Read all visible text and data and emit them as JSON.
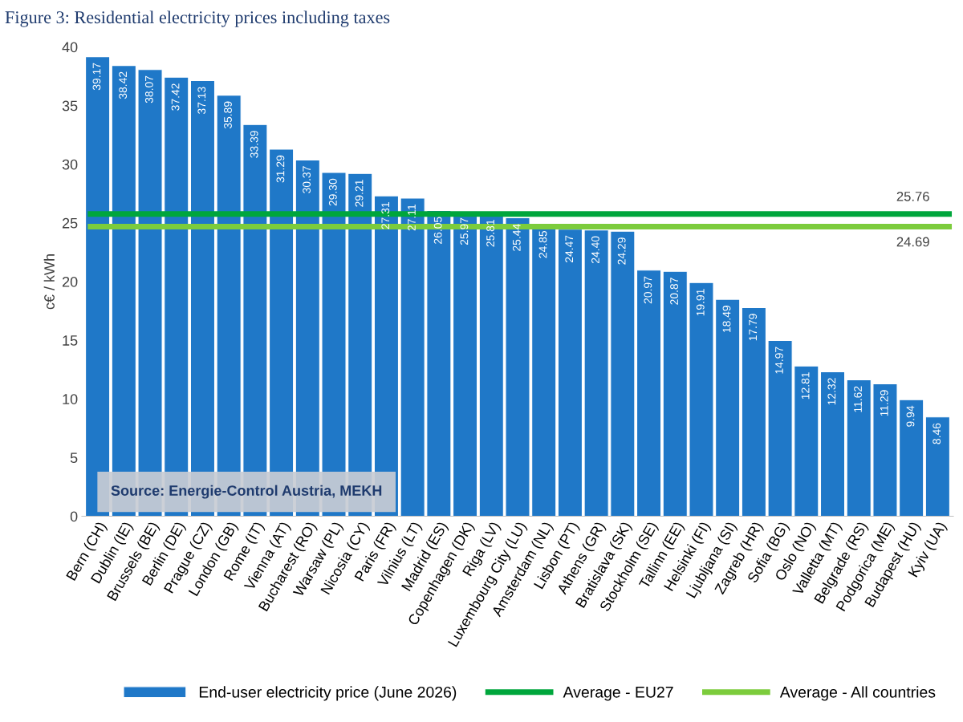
{
  "chart_data": {
    "type": "bar",
    "title": "Figure 3: Residential electricity prices including taxes",
    "ylabel": "c€ / kWh",
    "categories": [
      "Bern (CH)",
      "Dublin (IE)",
      "Brussels (BE)",
      "Berlin (DE)",
      "Prague (CZ)",
      "London (GB)",
      "Rome (IT)",
      "Vienna (AT)",
      "Bucharest (RO)",
      "Warsaw (PL)",
      "Nicosia (CY)",
      "Paris (FR)",
      "Vilnius (LT)",
      "Madrid (ES)",
      "Copenhagen (DK)",
      "Riga (LV)",
      "Luxembourg City (LU)",
      "Amsterdam (NL)",
      "Lisbon (PT)",
      "Athens (GR)",
      "Bratislava (SK)",
      "Stockholm (SE)",
      "Tallinn (EE)",
      "Helsinki (FI)",
      "Ljubljana (SI)",
      "Zagreb (HR)",
      "Sofia (BG)",
      "Oslo (NO)",
      "Valletta (MT)",
      "Belgrade (RS)",
      "Podgorica (ME)",
      "Budapest (HU)",
      "Kyiv (UA)"
    ],
    "series": [
      {
        "name": "End-user electricity price (June 2026)",
        "color": "#1f78c8",
        "values": [
          39.17,
          38.42,
          38.07,
          37.42,
          37.13,
          35.89,
          33.39,
          31.29,
          30.37,
          29.3,
          29.21,
          27.31,
          27.11,
          26.05,
          25.97,
          25.81,
          25.44,
          24.85,
          24.47,
          24.4,
          24.29,
          20.97,
          20.87,
          19.91,
          18.49,
          17.79,
          14.97,
          12.81,
          12.32,
          11.62,
          11.29,
          9.94,
          8.46
        ],
        "value_labels": [
          "39.17",
          "38.42",
          "38.07",
          "37.42",
          "37.13",
          "35.89",
          "33.39",
          "31.29",
          "30.37",
          "29.30",
          "29.21",
          "27.31",
          "27.11",
          "26.05",
          "25.97",
          "25.81",
          "25.44",
          "24.85",
          "24.47",
          "24.40",
          "24.29",
          "20.97",
          "20.87",
          "19.91",
          "18.49",
          "17.79",
          "14.97",
          "12.81",
          "12.32",
          "11.62",
          "11.29",
          "9.94",
          "8.46"
        ]
      }
    ],
    "ref_lines": [
      {
        "axis": "y",
        "value": 25.76,
        "label": "Average - EU27",
        "color": "#00a63c"
      },
      {
        "axis": "y",
        "value": 24.69,
        "label": "Average - All countries",
        "color": "#7ccc3c"
      }
    ],
    "ylim": [
      0,
      40
    ],
    "yticks": [
      0,
      5,
      10,
      15,
      20,
      25,
      30,
      35,
      40
    ],
    "grid": false,
    "legend": "bottom",
    "annotations": [
      "Source: Energie-Control Austria, MEKH",
      {
        "text": "25.76",
        "y": 25.76
      },
      {
        "text": "24.69",
        "y": 24.69
      }
    ]
  }
}
